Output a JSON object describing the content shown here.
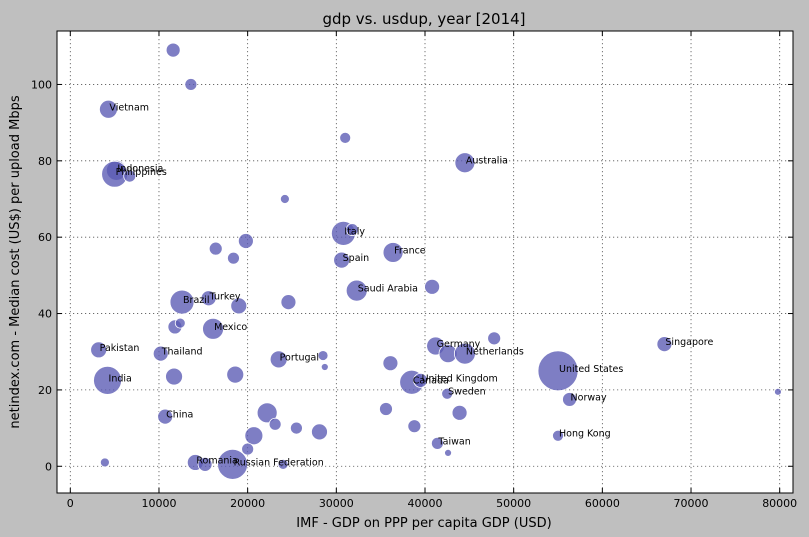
{
  "chart_data": {
    "type": "scatter",
    "title": "gdp vs. usdup, year [2014]",
    "xlabel": "IMF - GDP on PPP per capita GDP (USD)",
    "ylabel": "netindex.com - Median cost (US$) per upload Mbps",
    "xlim": [
      -1500,
      81500
    ],
    "ylim": [
      -7,
      114
    ],
    "xticks": [
      0,
      10000,
      20000,
      30000,
      40000,
      50000,
      60000,
      70000,
      80000
    ],
    "yticks": [
      0,
      20,
      40,
      60,
      80,
      100
    ],
    "grid": true,
    "bubble_color": "#5a5ab4",
    "background_color": "#bfbfbf",
    "points": [
      {
        "x": 4300,
        "y": 93.5,
        "r": 9,
        "label": "Vietnam"
      },
      {
        "x": 5200,
        "y": 77.5,
        "r": 10,
        "label": "Indonesia"
      },
      {
        "x": 5000,
        "y": 76.5,
        "r": 13,
        "label": "Philippines"
      },
      {
        "x": 6700,
        "y": 76,
        "r": 6,
        "label": ""
      },
      {
        "x": 11600,
        "y": 109,
        "r": 7,
        "label": ""
      },
      {
        "x": 13600,
        "y": 100,
        "r": 6,
        "label": ""
      },
      {
        "x": 31000,
        "y": 86,
        "r": 5.5,
        "label": ""
      },
      {
        "x": 44500,
        "y": 79.5,
        "r": 10,
        "label": "Australia"
      },
      {
        "x": 24200,
        "y": 70,
        "r": 4.5,
        "label": ""
      },
      {
        "x": 30800,
        "y": 61,
        "r": 12,
        "label": "Italy"
      },
      {
        "x": 31800,
        "y": 62,
        "r": 6,
        "label": ""
      },
      {
        "x": 19800,
        "y": 59,
        "r": 7.5,
        "label": ""
      },
      {
        "x": 16400,
        "y": 57,
        "r": 6.5,
        "label": ""
      },
      {
        "x": 18400,
        "y": 54.5,
        "r": 6,
        "label": ""
      },
      {
        "x": 36400,
        "y": 56,
        "r": 10,
        "label": "France"
      },
      {
        "x": 30600,
        "y": 54,
        "r": 8,
        "label": "Spain"
      },
      {
        "x": 32300,
        "y": 46,
        "r": 10.5,
        "label": "Saudi Arabia"
      },
      {
        "x": 40800,
        "y": 47,
        "r": 7.5,
        "label": ""
      },
      {
        "x": 12600,
        "y": 43,
        "r": 12,
        "label": "Brazil"
      },
      {
        "x": 15600,
        "y": 44,
        "r": 7.5,
        "label": "Turkey"
      },
      {
        "x": 19000,
        "y": 42,
        "r": 8,
        "label": ""
      },
      {
        "x": 24600,
        "y": 43,
        "r": 7.5,
        "label": ""
      },
      {
        "x": 11800,
        "y": 36.5,
        "r": 7,
        "label": ""
      },
      {
        "x": 12400,
        "y": 37.5,
        "r": 5,
        "label": ""
      },
      {
        "x": 16100,
        "y": 36,
        "r": 10.5,
        "label": "Mexico"
      },
      {
        "x": 3200,
        "y": 30.5,
        "r": 8,
        "label": "Pakistan"
      },
      {
        "x": 10200,
        "y": 29.5,
        "r": 7.5,
        "label": "Thailand"
      },
      {
        "x": 23500,
        "y": 28,
        "r": 8.5,
        "label": "Portugal"
      },
      {
        "x": 28500,
        "y": 29,
        "r": 5,
        "label": ""
      },
      {
        "x": 28700,
        "y": 26,
        "r": 3.5,
        "label": ""
      },
      {
        "x": 36100,
        "y": 27,
        "r": 7.5,
        "label": ""
      },
      {
        "x": 41200,
        "y": 31.5,
        "r": 9,
        "label": "Germany"
      },
      {
        "x": 42600,
        "y": 29.5,
        "r": 9,
        "label": ""
      },
      {
        "x": 44500,
        "y": 29.5,
        "r": 10.5,
        "label": "Netherlands"
      },
      {
        "x": 47800,
        "y": 33.5,
        "r": 6.5,
        "label": ""
      },
      {
        "x": 67000,
        "y": 32,
        "r": 7.5,
        "label": "Singapore"
      },
      {
        "x": 55000,
        "y": 25,
        "r": 20,
        "label": "United States"
      },
      {
        "x": 4200,
        "y": 22.5,
        "r": 14,
        "label": "India"
      },
      {
        "x": 11700,
        "y": 23.5,
        "r": 8.5,
        "label": ""
      },
      {
        "x": 18600,
        "y": 24,
        "r": 8.5,
        "label": ""
      },
      {
        "x": 38500,
        "y": 22,
        "r": 12,
        "label": "Canada"
      },
      {
        "x": 39500,
        "y": 22.5,
        "r": 7,
        "label": "United Kingdom"
      },
      {
        "x": 42500,
        "y": 19,
        "r": 5.5,
        "label": "Sweden"
      },
      {
        "x": 56300,
        "y": 17.5,
        "r": 7,
        "label": "Norway"
      },
      {
        "x": 79800,
        "y": 19.5,
        "r": 3.5,
        "label": ""
      },
      {
        "x": 10700,
        "y": 13,
        "r": 7.5,
        "label": "China"
      },
      {
        "x": 22200,
        "y": 14,
        "r": 10,
        "label": ""
      },
      {
        "x": 35600,
        "y": 15,
        "r": 6.5,
        "label": ""
      },
      {
        "x": 43900,
        "y": 14,
        "r": 7.5,
        "label": ""
      },
      {
        "x": 23100,
        "y": 11,
        "r": 6,
        "label": ""
      },
      {
        "x": 20700,
        "y": 8,
        "r": 9,
        "label": ""
      },
      {
        "x": 25500,
        "y": 10,
        "r": 6,
        "label": ""
      },
      {
        "x": 28100,
        "y": 9,
        "r": 8,
        "label": ""
      },
      {
        "x": 38800,
        "y": 10.5,
        "r": 6.5,
        "label": ""
      },
      {
        "x": 55000,
        "y": 8,
        "r": 5.5,
        "label": "Hong Kong"
      },
      {
        "x": 20000,
        "y": 4.5,
        "r": 6,
        "label": ""
      },
      {
        "x": 41400,
        "y": 6,
        "r": 6,
        "label": "Taiwan"
      },
      {
        "x": 42600,
        "y": 3.5,
        "r": 3.5,
        "label": ""
      },
      {
        "x": 3900,
        "y": 1,
        "r": 4.5,
        "label": ""
      },
      {
        "x": 14100,
        "y": 1,
        "r": 8,
        "label": "Romania"
      },
      {
        "x": 15200,
        "y": 0.5,
        "r": 7,
        "label": ""
      },
      {
        "x": 18300,
        "y": 0.5,
        "r": 15,
        "label": "Russian Federation"
      },
      {
        "x": 24000,
        "y": 0.5,
        "r": 5,
        "label": ""
      }
    ]
  }
}
